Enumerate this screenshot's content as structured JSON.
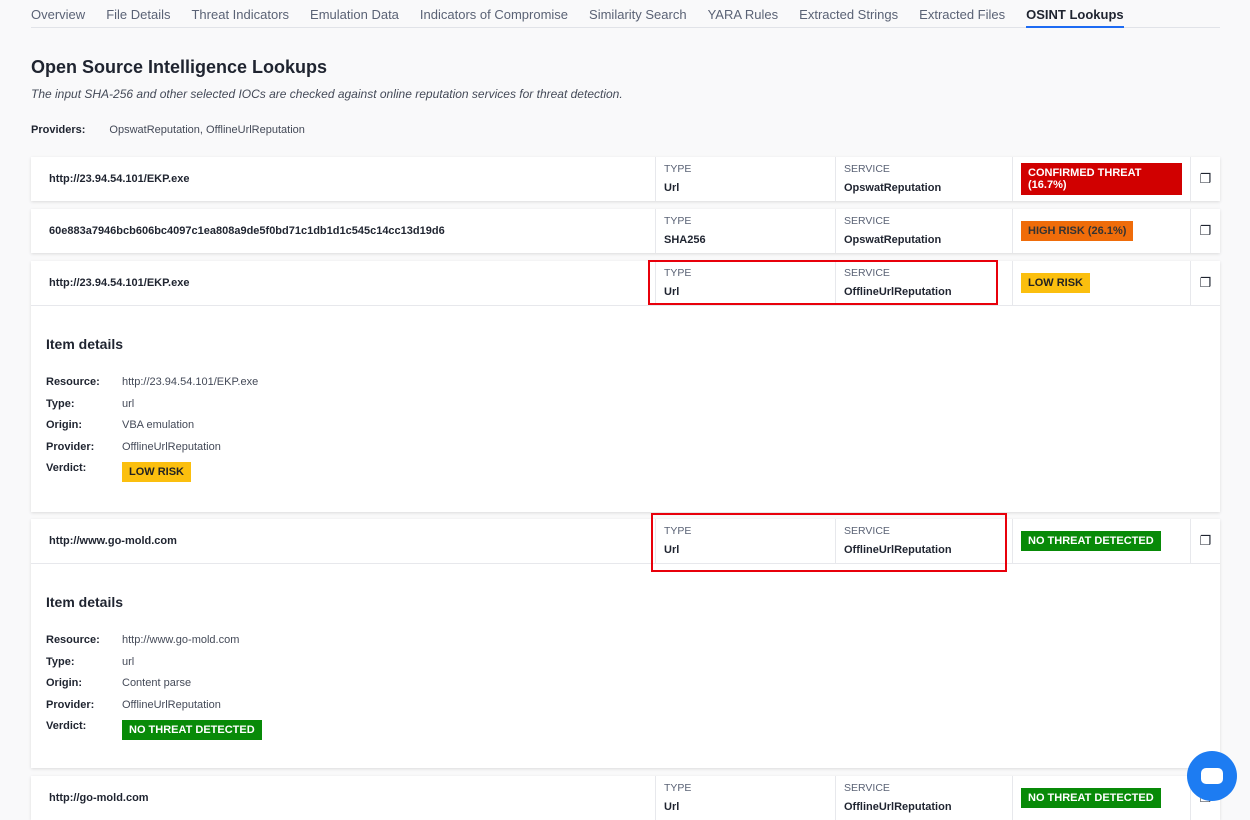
{
  "tabs": [
    "Overview",
    "File Details",
    "Threat Indicators",
    "Emulation Data",
    "Indicators of Compromise",
    "Similarity Search",
    "YARA Rules",
    "Extracted Strings",
    "Extracted Files",
    "OSINT Lookups"
  ],
  "active_tab": "OSINT Lookups",
  "title": "Open Source Intelligence Lookups",
  "subtitle": "The input SHA-256 and other selected IOCs are checked against online reputation services for threat detection.",
  "providers_label": "Providers:",
  "providers": "OpswatReputation, OfflineUrlReputation",
  "type_label": "TYPE",
  "service_label": "SERVICE",
  "rows": [
    {
      "id": "http://23.94.54.101/EKP.exe",
      "type": "Url",
      "service": "OpswatReputation",
      "verdict": "CONFIRMED THREAT (16.7%)",
      "color": "#d10000"
    },
    {
      "id": "60e883a7946bcb606bc4097c1ea808a9de5f0bd71c1db1d1c545c14cc13d19d6",
      "type": "SHA256",
      "service": "OpswatReputation",
      "verdict": "HIGH RISK (26.1%)",
      "color": "#ef6c0a"
    },
    {
      "id": "http://23.94.54.101/EKP.exe",
      "type": "Url",
      "service": "OfflineUrlReputation",
      "verdict": "LOW RISK",
      "color": "#fbbf0e",
      "details": {
        "heading": "Item details",
        "resource": "http://23.94.54.101/EKP.exe",
        "type": "url",
        "origin": "VBA emulation",
        "provider": "OfflineUrlReputation",
        "verdict": "LOW RISK"
      }
    },
    {
      "id": "http://www.go-mold.com",
      "type": "Url",
      "service": "OfflineUrlReputation",
      "verdict": "NO THREAT DETECTED",
      "color": "#088a08",
      "details": {
        "heading": "Item details",
        "resource": "http://www.go-mold.com",
        "type": "url",
        "origin": "Content parse",
        "provider": "OfflineUrlReputation",
        "verdict": "NO THREAT DETECTED"
      }
    },
    {
      "id": "http://go-mold.com",
      "type": "Url",
      "service": "OfflineUrlReputation",
      "verdict": "NO THREAT DETECTED",
      "color": "#088a08"
    }
  ],
  "detail_labels": {
    "resource": "Resource:",
    "type": "Type:",
    "origin": "Origin:",
    "provider": "Provider:",
    "verdict": "Verdict:"
  }
}
